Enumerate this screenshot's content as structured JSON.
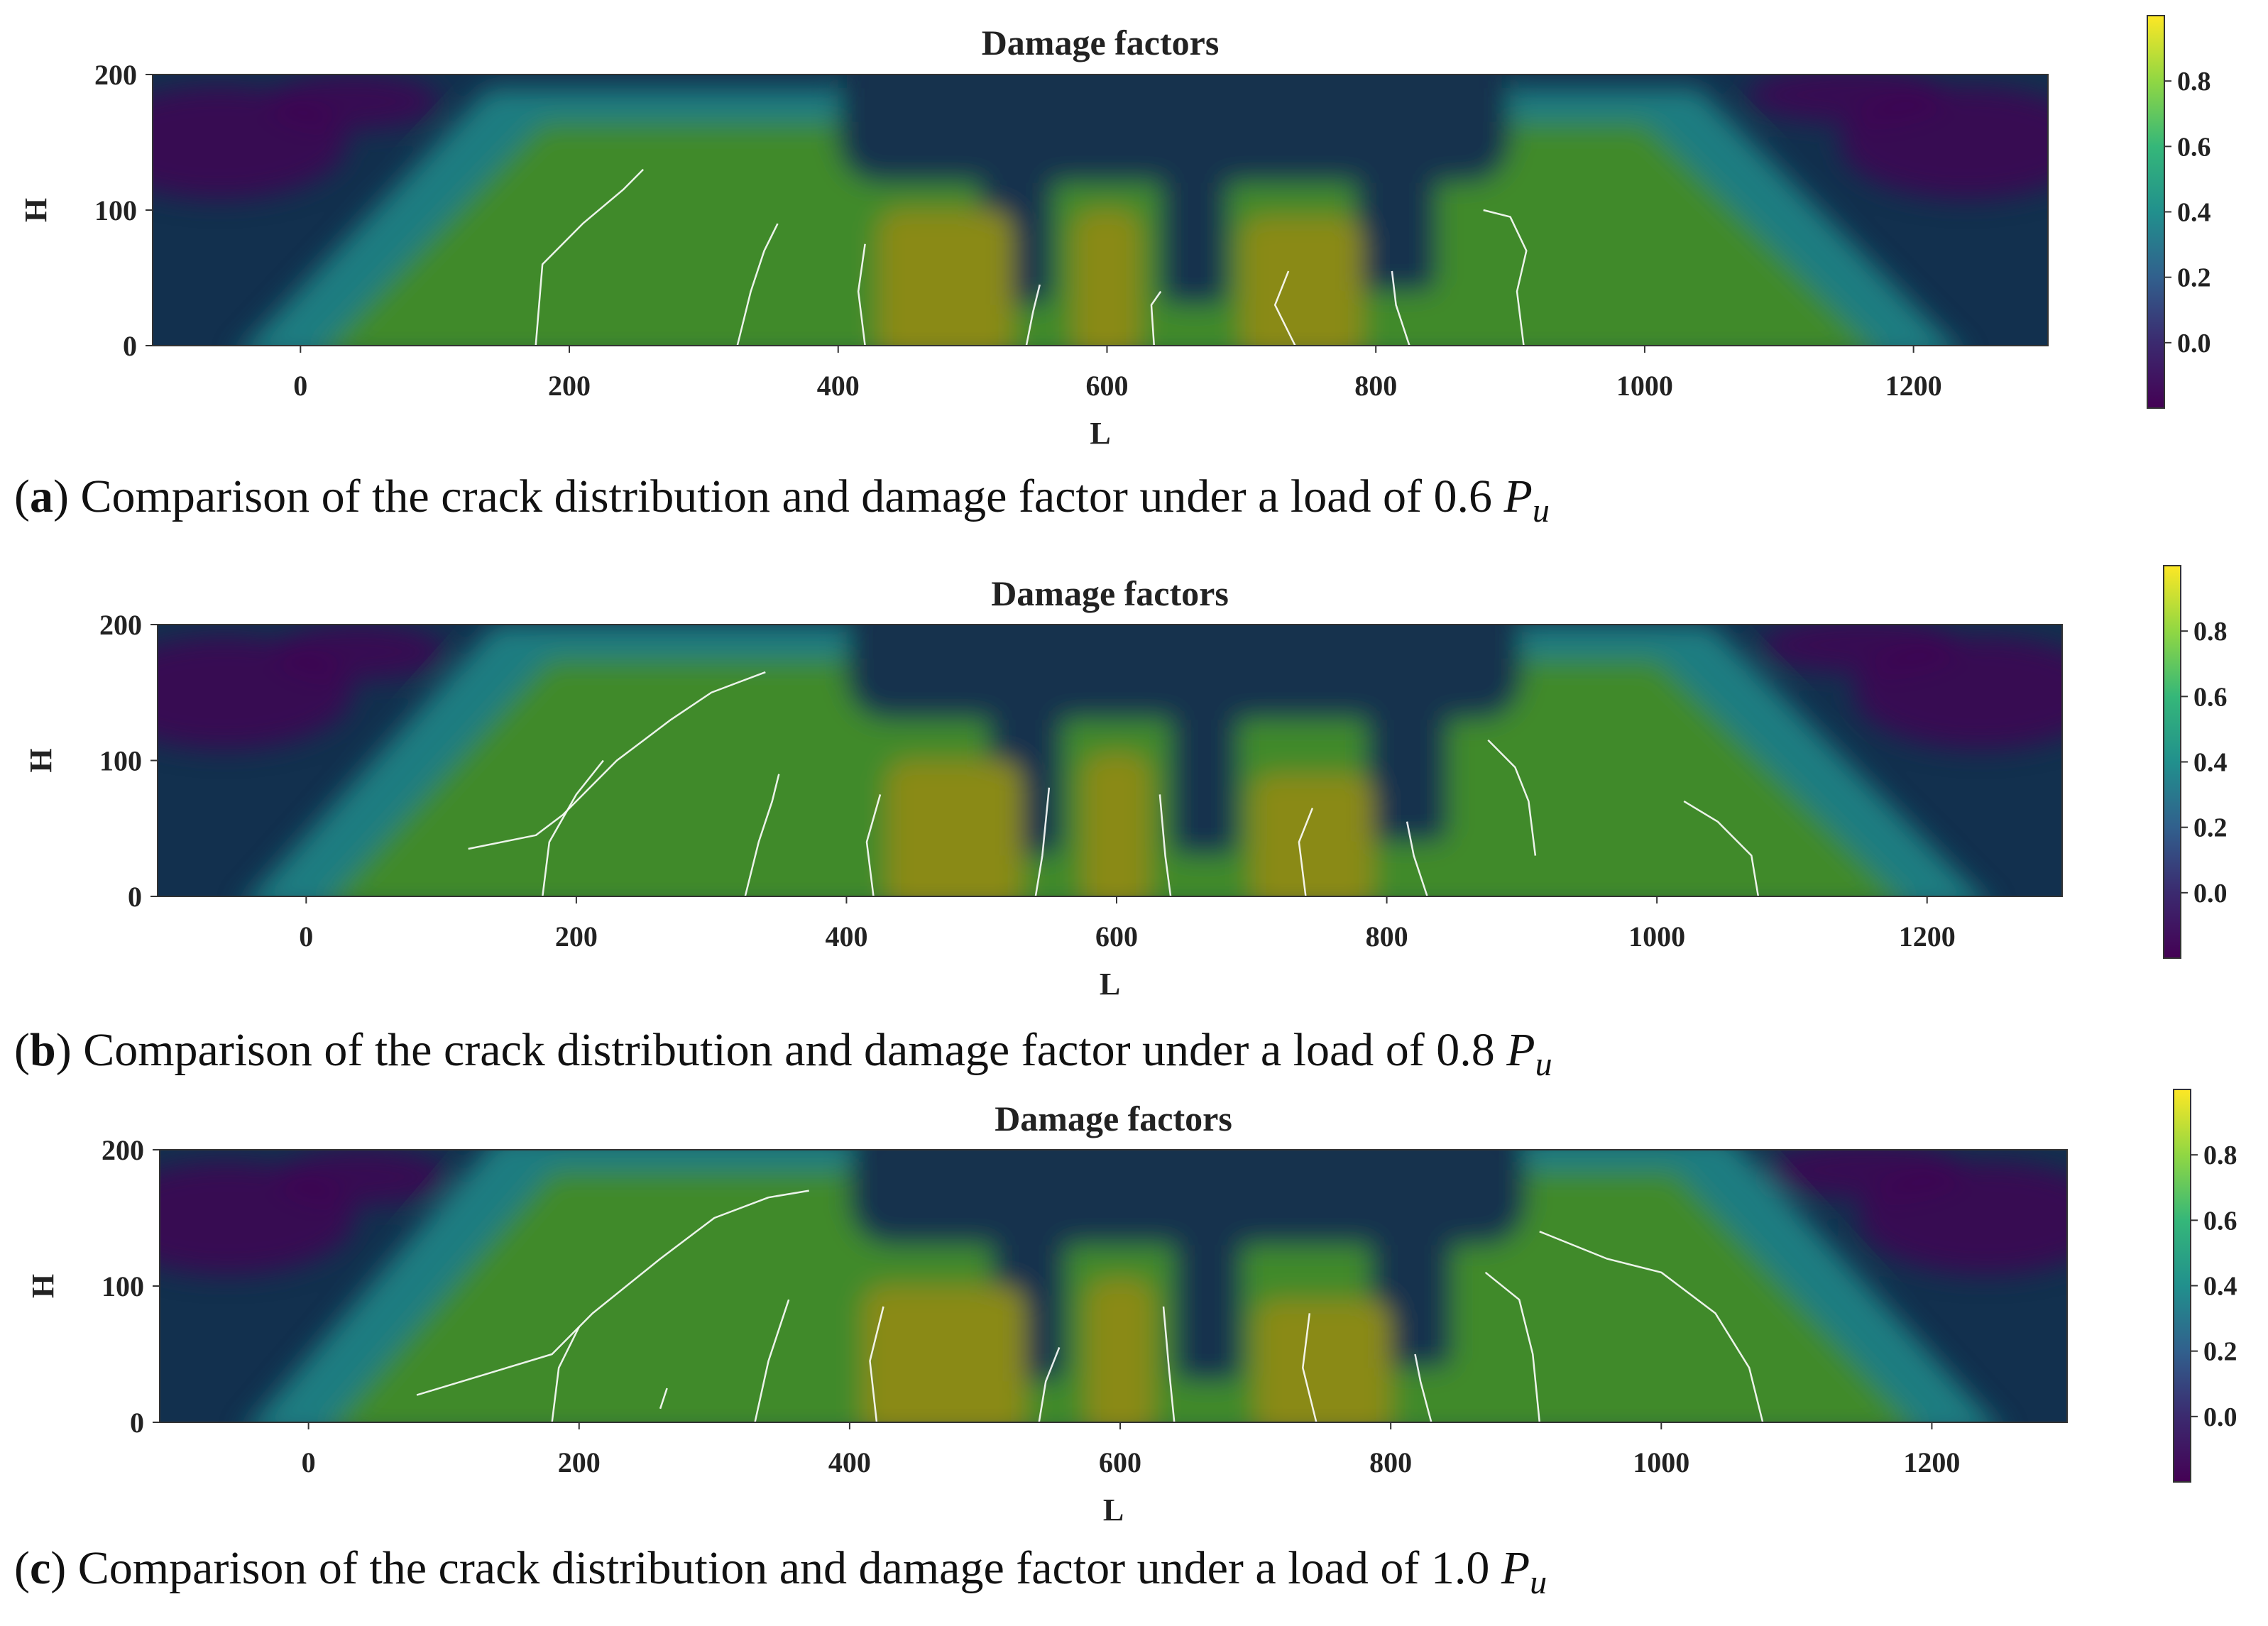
{
  "colormap": {
    "name": "viridis",
    "stops": [
      "#440154",
      "#3b2a6f",
      "#31608d",
      "#21908d",
      "#35b779",
      "#90d743",
      "#fde725"
    ],
    "field_background": "#12304e",
    "crack_color": "#ffffff"
  },
  "chart_data": [
    {
      "type": "heatmap",
      "title": "Damage factors",
      "xlabel": "L",
      "ylabel": "H",
      "xlim": [
        -110,
        1300
      ],
      "ylim": [
        0,
        200
      ],
      "xticks": [
        0,
        200,
        400,
        600,
        800,
        1000,
        1200
      ],
      "yticks": [
        0,
        100,
        200
      ],
      "colorbar": {
        "ticks": [
          0.0,
          0.2,
          0.4,
          0.6,
          0.8
        ],
        "range": [
          -0.2,
          1.0
        ]
      },
      "load_fraction": 0.6,
      "damage_zone": {
        "left_base": [
          10,
          0
        ],
        "left_top": [
          180,
          165
        ],
        "right_top": [
          1000,
          165
        ],
        "right_base": [
          1180,
          0
        ]
      },
      "uncracked_core": {
        "x": [
          400,
          900
        ],
        "y": [
          120,
          200
        ]
      },
      "high_damage_patches": [
        {
          "x": [
            430,
            530
          ],
          "y": [
            0,
            100
          ],
          "value": 0.85
        },
        {
          "x": [
            575,
            625
          ],
          "y": [
            0,
            100
          ],
          "value": 0.85
        },
        {
          "x": [
            700,
            790
          ],
          "y": [
            0,
            95
          ],
          "value": 0.85
        }
      ],
      "cracks": [
        {
          "points": [
            [
              175,
              0
            ],
            [
              180,
              60
            ],
            [
              210,
              90
            ],
            [
              240,
              115
            ],
            [
              255,
              130
            ]
          ]
        },
        {
          "points": [
            [
              325,
              0
            ],
            [
              335,
              40
            ],
            [
              345,
              70
            ],
            [
              355,
              90
            ]
          ]
        },
        {
          "points": [
            [
              420,
              0
            ],
            [
              415,
              40
            ],
            [
              420,
              75
            ]
          ]
        },
        {
          "points": [
            [
              540,
              0
            ],
            [
              545,
              25
            ],
            [
              550,
              45
            ]
          ]
        },
        {
          "points": [
            [
              635,
              0
            ],
            [
              633,
              30
            ],
            [
              640,
              40
            ]
          ]
        },
        {
          "points": [
            [
              740,
              0
            ],
            [
              725,
              30
            ],
            [
              735,
              55
            ]
          ]
        },
        {
          "points": [
            [
              825,
              0
            ],
            [
              815,
              30
            ],
            [
              812,
              55
            ]
          ]
        },
        {
          "points": [
            [
              910,
              0
            ],
            [
              905,
              40
            ],
            [
              912,
              70
            ],
            [
              900,
              95
            ],
            [
              880,
              100
            ]
          ]
        }
      ]
    },
    {
      "type": "heatmap",
      "title": "Damage factors",
      "xlabel": "L",
      "ylabel": "H",
      "xlim": [
        -110,
        1300
      ],
      "ylim": [
        0,
        200
      ],
      "xticks": [
        0,
        200,
        400,
        600,
        800,
        1000,
        1200
      ],
      "yticks": [
        0,
        100,
        200
      ],
      "colorbar": {
        "ticks": [
          0.0,
          0.2,
          0.4,
          0.6,
          0.8
        ],
        "range": [
          -0.2,
          1.0
        ]
      },
      "load_fraction": 0.8,
      "damage_zone": {
        "left_base": [
          10,
          0
        ],
        "left_top": [
          180,
          175
        ],
        "right_top": [
          1000,
          175
        ],
        "right_base": [
          1190,
          0
        ]
      },
      "uncracked_core": {
        "x": [
          400,
          900
        ],
        "y": [
          130,
          200
        ]
      },
      "high_damage_patches": [
        {
          "x": [
            430,
            530
          ],
          "y": [
            0,
            100
          ],
          "value": 0.85
        },
        {
          "x": [
            575,
            625
          ],
          "y": [
            0,
            105
          ],
          "value": 0.85
        },
        {
          "x": [
            700,
            790
          ],
          "y": [
            0,
            90
          ],
          "value": 0.85
        }
      ],
      "cracks": [
        {
          "points": [
            [
              120,
              35
            ],
            [
              170,
              45
            ],
            [
              190,
              60
            ],
            [
              230,
              100
            ],
            [
              270,
              130
            ],
            [
              300,
              150
            ],
            [
              340,
              165
            ]
          ]
        },
        {
          "points": [
            [
              175,
              0
            ],
            [
              180,
              40
            ],
            [
              200,
              75
            ],
            [
              220,
              100
            ]
          ]
        },
        {
          "points": [
            [
              325,
              0
            ],
            [
              335,
              40
            ],
            [
              345,
              70
            ],
            [
              350,
              90
            ]
          ]
        },
        {
          "points": [
            [
              420,
              0
            ],
            [
              415,
              40
            ],
            [
              425,
              75
            ]
          ]
        },
        {
          "points": [
            [
              540,
              0
            ],
            [
              545,
              30
            ],
            [
              550,
              80
            ]
          ]
        },
        {
          "points": [
            [
              640,
              0
            ],
            [
              636,
              30
            ],
            [
              632,
              75
            ]
          ]
        },
        {
          "points": [
            [
              740,
              0
            ],
            [
              735,
              40
            ],
            [
              745,
              65
            ]
          ]
        },
        {
          "points": [
            [
              830,
              0
            ],
            [
              820,
              30
            ],
            [
              815,
              55
            ]
          ]
        },
        {
          "points": [
            [
              910,
              30
            ],
            [
              905,
              70
            ],
            [
              895,
              95
            ],
            [
              875,
              115
            ]
          ]
        },
        {
          "points": [
            [
              1075,
              0
            ],
            [
              1070,
              30
            ],
            [
              1045,
              55
            ],
            [
              1020,
              70
            ]
          ]
        }
      ]
    },
    {
      "type": "heatmap",
      "title": "Damage factors",
      "xlabel": "L",
      "ylabel": "H",
      "xlim": [
        -110,
        1300
      ],
      "ylim": [
        0,
        200
      ],
      "xticks": [
        0,
        200,
        400,
        600,
        800,
        1000,
        1200
      ],
      "yticks": [
        0,
        100,
        200
      ],
      "colorbar": {
        "ticks": [
          0.0,
          0.2,
          0.4,
          0.6,
          0.8
        ],
        "range": [
          -0.2,
          1.0
        ]
      },
      "load_fraction": 1.0,
      "damage_zone": {
        "left_base": [
          10,
          0
        ],
        "left_top": [
          180,
          185
        ],
        "right_top": [
          1010,
          185
        ],
        "right_base": [
          1195,
          0
        ]
      },
      "uncracked_core": {
        "x": [
          400,
          900
        ],
        "y": [
          130,
          195
        ]
      },
      "high_damage_patches": [
        {
          "x": [
            410,
            530
          ],
          "y": [
            0,
            100
          ],
          "value": 0.85
        },
        {
          "x": [
            575,
            625
          ],
          "y": [
            0,
            105
          ],
          "value": 0.85
        },
        {
          "x": [
            700,
            800
          ],
          "y": [
            0,
            90
          ],
          "value": 0.85
        }
      ],
      "cracks": [
        {
          "points": [
            [
              80,
              20
            ],
            [
              130,
              35
            ],
            [
              180,
              50
            ],
            [
              210,
              80
            ],
            [
              260,
              120
            ],
            [
              300,
              150
            ],
            [
              340,
              165
            ],
            [
              370,
              170
            ]
          ]
        },
        {
          "points": [
            [
              180,
              0
            ],
            [
              185,
              40
            ],
            [
              200,
              70
            ]
          ]
        },
        {
          "points": [
            [
              260,
              10
            ],
            [
              265,
              25
            ]
          ]
        },
        {
          "points": [
            [
              330,
              0
            ],
            [
              340,
              45
            ],
            [
              355,
              90
            ]
          ]
        },
        {
          "points": [
            [
              420,
              0
            ],
            [
              415,
              45
            ],
            [
              425,
              85
            ]
          ]
        },
        {
          "points": [
            [
              540,
              0
            ],
            [
              545,
              30
            ],
            [
              555,
              55
            ]
          ]
        },
        {
          "points": [
            [
              640,
              0
            ],
            [
              636,
              40
            ],
            [
              632,
              85
            ]
          ]
        },
        {
          "points": [
            [
              745,
              0
            ],
            [
              735,
              40
            ],
            [
              740,
              80
            ]
          ]
        },
        {
          "points": [
            [
              830,
              0
            ],
            [
              822,
              30
            ],
            [
              818,
              50
            ]
          ]
        },
        {
          "points": [
            [
              910,
              0
            ],
            [
              905,
              50
            ],
            [
              895,
              90
            ],
            [
              870,
              110
            ]
          ]
        },
        {
          "points": [
            [
              1075,
              0
            ],
            [
              1065,
              40
            ],
            [
              1040,
              80
            ],
            [
              1000,
              110
            ],
            [
              960,
              120
            ],
            [
              910,
              140
            ]
          ]
        }
      ]
    }
  ],
  "captions": [
    {
      "label": "a",
      "text": "Comparison of the crack distribution and damage factor under a load of",
      "load": "0.6",
      "symbol": "P",
      "subscript": "u"
    },
    {
      "label": "b",
      "text": "Comparison of the crack distribution and damage factor under a load of",
      "load": "0.8",
      "symbol": "P",
      "subscript": "u"
    },
    {
      "label": "c",
      "text": "Comparison of the crack distribution and damage factor under a load of",
      "load": "1.0",
      "symbol": "P",
      "subscript": "u"
    }
  ]
}
